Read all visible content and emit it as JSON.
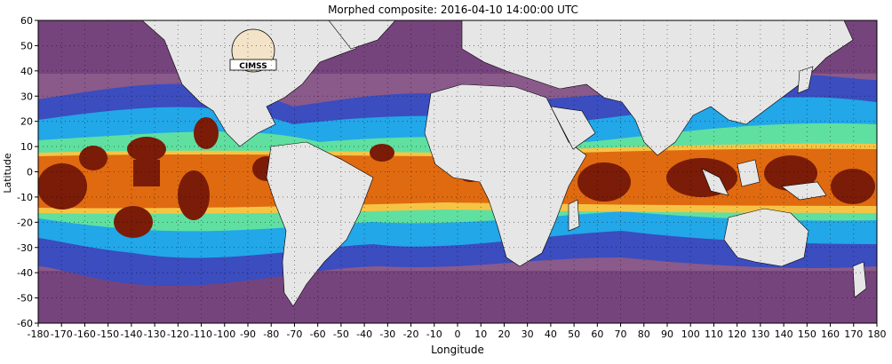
{
  "title": "Morphed composite: 2016-04-10 14:00:00 UTC",
  "xlabel": "Longitude",
  "ylabel": "Latitude",
  "x_ticks": [
    "-180",
    "-170",
    "-160",
    "-150",
    "-140",
    "-130",
    "-120",
    "-110",
    "-100",
    "-90",
    "-80",
    "-70",
    "-60",
    "-50",
    "-40",
    "-30",
    "-20",
    "-10",
    "0",
    "10",
    "20",
    "30",
    "40",
    "50",
    "60",
    "70",
    "80",
    "90",
    "100",
    "110",
    "120",
    "130",
    "140",
    "150",
    "160",
    "170",
    "180"
  ],
  "y_ticks": [
    "60",
    "50",
    "40",
    "30",
    "20",
    "10",
    "0",
    "-10",
    "-20",
    "-30",
    "-40",
    "-50",
    "-60"
  ],
  "logo_text": "CIMSS",
  "colors": {
    "land": "#e6e6e6",
    "border": "#000000",
    "very_dry": "#6e3a78",
    "dry": "#8a5a8a",
    "low": "#3b4dbf",
    "mid_low": "#22a7e8",
    "mid": "#5fe0a0",
    "mid_high": "#f6c445",
    "high": "#e06a10",
    "very_high": "#7a1c08"
  },
  "chart_data": {
    "type": "heatmap",
    "title": "Morphed composite: 2016-04-10 14:00:00 UTC",
    "xlabel": "Longitude",
    "ylabel": "Latitude",
    "xlim": [
      -180,
      180
    ],
    "ylim": [
      -60,
      60
    ],
    "x_tick_values": [
      -180,
      -170,
      -160,
      -150,
      -140,
      -130,
      -120,
      -110,
      -100,
      -90,
      -80,
      -70,
      -60,
      -50,
      -40,
      -30,
      -20,
      -10,
      0,
      10,
      20,
      30,
      40,
      50,
      60,
      70,
      80,
      90,
      100,
      110,
      120,
      130,
      140,
      150,
      160,
      170,
      180
    ],
    "y_tick_values": [
      60,
      50,
      40,
      30,
      20,
      10,
      0,
      -10,
      -20,
      -30,
      -40,
      -50,
      -60
    ],
    "grid": true,
    "grid_style": "dotted"
  }
}
